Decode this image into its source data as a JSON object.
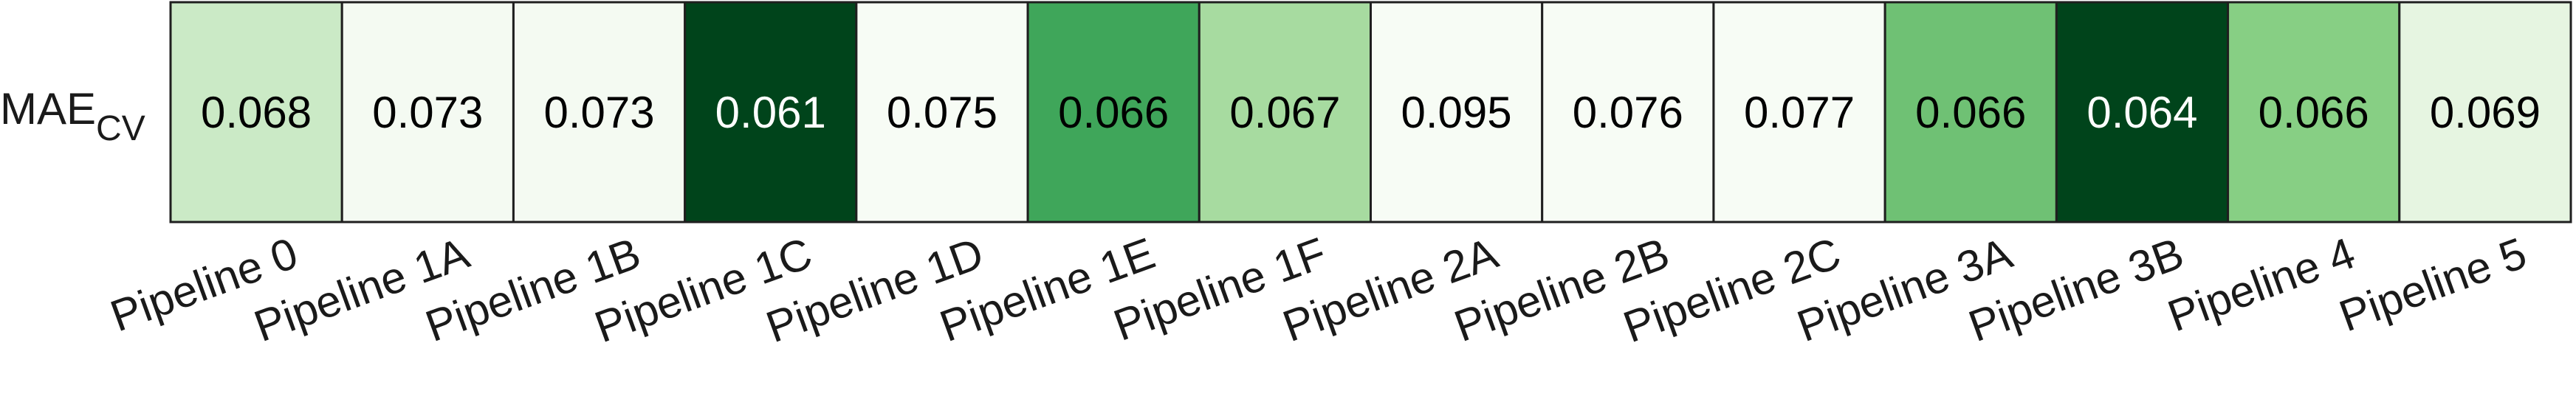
{
  "chart_data": {
    "type": "heatmap",
    "row_label": {
      "main": "MAE",
      "subscript": "CV"
    },
    "categories": [
      "Pipeline 0",
      "Pipeline 1A",
      "Pipeline 1B",
      "Pipeline 1C",
      "Pipeline 1D",
      "Pipeline 1E",
      "Pipeline 1F",
      "Pipeline 2A",
      "Pipeline 2B",
      "Pipeline 2C",
      "Pipeline 3A",
      "Pipeline 3B",
      "Pipeline 4",
      "Pipeline 5"
    ],
    "values": [
      "0.068",
      "0.073",
      "0.073",
      "0.061",
      "0.075",
      "0.066",
      "0.067",
      "0.095",
      "0.076",
      "0.077",
      "0.066",
      "0.064",
      "0.066",
      "0.069"
    ],
    "cell_colors": [
      "#cbeac6",
      "#f4faf2",
      "#f4faf2",
      "#00441b",
      "#f7fcf5",
      "#3fa65a",
      "#a7dba0",
      "#f7fcf5",
      "#f7fcf5",
      "#f7fcf5",
      "#6fc174",
      "#00441b",
      "#87cf84",
      "#e6f5e1"
    ],
    "text_colors": [
      "#000000",
      "#000000",
      "#000000",
      "#ffffff",
      "#000000",
      "#000000",
      "#000000",
      "#000000",
      "#000000",
      "#000000",
      "#000000",
      "#ffffff",
      "#000000",
      "#000000"
    ],
    "border_color": "#1f1f1f",
    "colormap": "Greens",
    "grid": false,
    "legend": "none"
  }
}
